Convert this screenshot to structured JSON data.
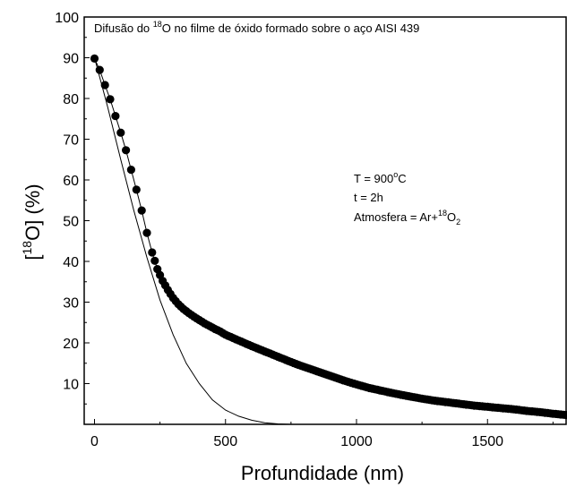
{
  "chart_data": {
    "type": "scatter",
    "title_pre": "Difusão do ",
    "title_sup": "18",
    "title_post": "O no filme de óxido formado sobre o aço AISI 439",
    "xlabel": "Profundidade (nm)",
    "ylabel_open": "[",
    "ylabel_sup": "18",
    "ylabel_rest": "O] (%)",
    "xlim": [
      0,
      1800
    ],
    "ylim": [
      0,
      100
    ],
    "x_ticks": [
      0,
      500,
      1000,
      1500
    ],
    "y_ticks": [
      10,
      20,
      30,
      40,
      50,
      60,
      70,
      80,
      90,
      100
    ],
    "annotations": {
      "temp_pre": "T = 900",
      "temp_sup": "o",
      "temp_post": "C",
      "time": "t = 2h",
      "atm_pre": "Atmosfera = Ar+",
      "atm_sup": "18",
      "atm_mid": "O",
      "atm_sub": "2"
    },
    "series": [
      {
        "style": "markers",
        "marker_color": "#000000",
        "x": [
          0,
          20,
          40,
          60,
          80,
          100,
          120,
          140,
          160,
          180,
          200,
          220,
          240,
          260,
          280,
          300,
          320,
          340,
          360,
          380,
          400,
          420,
          440,
          460,
          480,
          500,
          550,
          600,
          650,
          700,
          750,
          800,
          850,
          900,
          950,
          1000,
          1050,
          1100,
          1150,
          1200,
          1250,
          1300,
          1350,
          1400,
          1450,
          1500,
          1550,
          1600,
          1650,
          1700,
          1750,
          1800
        ],
        "y": [
          89.8,
          87.0,
          83.3,
          79.8,
          75.7,
          71.6,
          67.3,
          62.5,
          57.6,
          52.5,
          47.0,
          42.2,
          38.1,
          35.2,
          33.0,
          31.0,
          29.5,
          28.3,
          27.3,
          26.4,
          25.6,
          24.8,
          24.1,
          23.4,
          22.8,
          22.0,
          20.6,
          19.2,
          17.9,
          16.6,
          15.3,
          14.1,
          13.0,
          11.9,
          10.8,
          9.8,
          8.9,
          8.2,
          7.5,
          6.9,
          6.3,
          5.8,
          5.4,
          5.0,
          4.6,
          4.3,
          4.0,
          3.7,
          3.3,
          3.0,
          2.6,
          2.3
        ]
      },
      {
        "style": "line",
        "line_color": "#000000",
        "x": [
          0,
          50,
          100,
          150,
          200,
          250,
          300,
          350,
          400,
          450,
          500,
          550,
          600,
          650,
          700,
          750
        ],
        "y": [
          90.0,
          78.0,
          65.0,
          52.5,
          41.0,
          30.5,
          22.0,
          15.0,
          10.0,
          6.0,
          3.5,
          2.0,
          1.0,
          0.4,
          0.1,
          0.0
        ]
      }
    ]
  }
}
